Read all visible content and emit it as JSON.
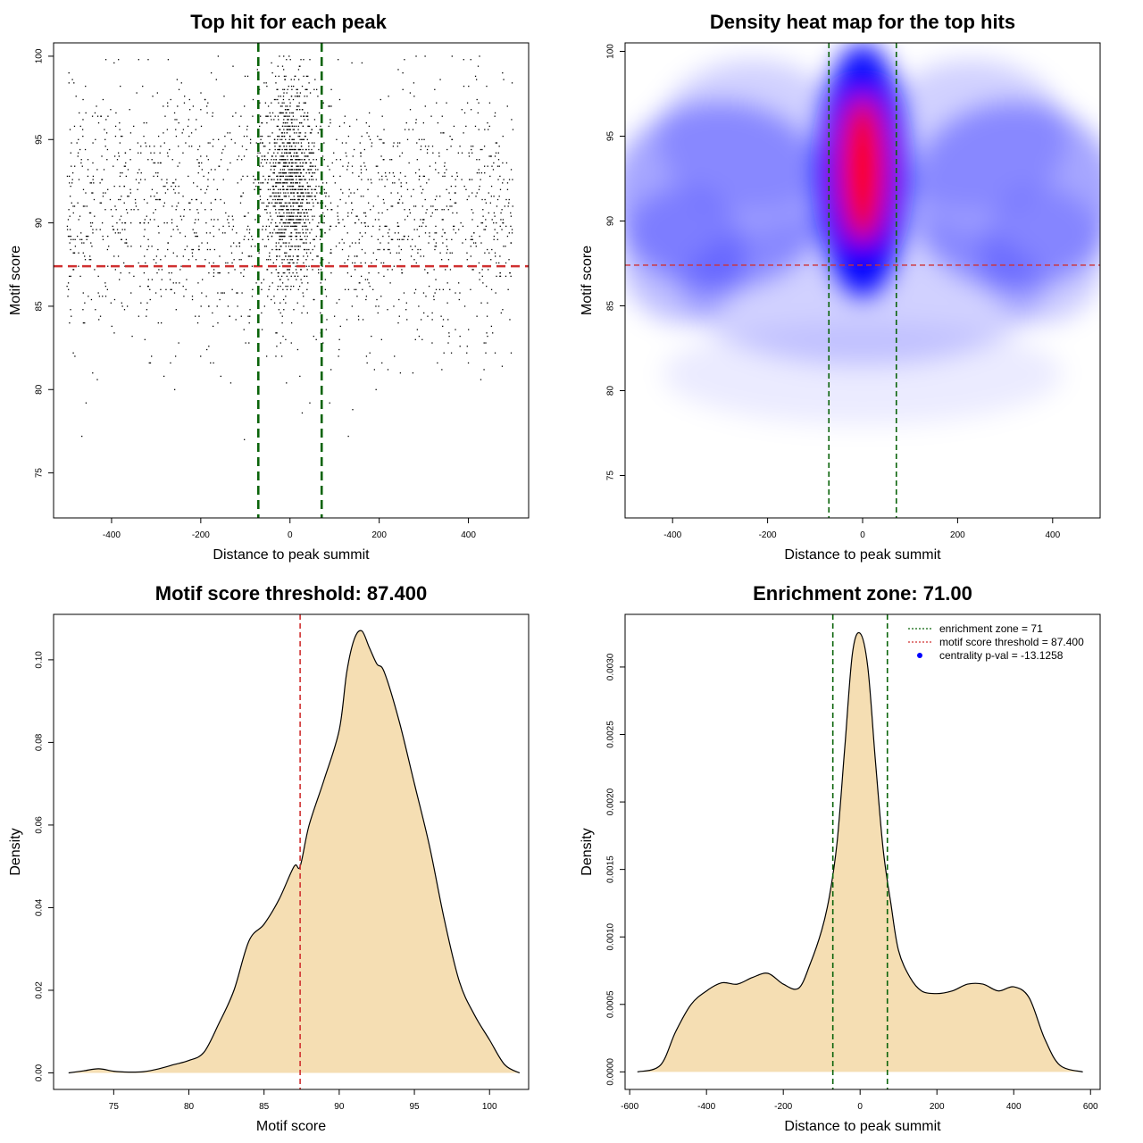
{
  "colors": {
    "threshold_red": "#d03030",
    "zone_green": "#0a640a",
    "density_fill": "#f5deb3",
    "heat_low": "#ffffff",
    "heat_mid": "#0000ff",
    "heat_high": "#ff0000",
    "point_color": "#000000"
  },
  "chart_data": [
    {
      "id": "scatter",
      "type": "scatter",
      "title": "Top hit for each peak",
      "xlabel": "Distance to peak summit",
      "ylabel": "Motif score",
      "xlim": [
        -530,
        535
      ],
      "ylim": [
        72.3,
        100.8
      ],
      "xticks": [
        -400,
        -200,
        0,
        200,
        400
      ],
      "yticks": [
        75,
        80,
        85,
        90,
        95,
        100
      ],
      "xtick_labels": [
        "-400",
        "-200",
        "0",
        "200",
        "400"
      ],
      "ytick_labels": [
        "75",
        "80",
        "85",
        "90",
        "95",
        "100"
      ],
      "threshold_y": 87.4,
      "zone_x": [
        -71,
        71
      ],
      "points_note": "approx. 3000 points; dense central band between -71 and 71, background spread between -500 and 500",
      "points_sampled": {
        "n_center": 1100,
        "n_background": 1800,
        "center_sd_x": 28,
        "center_mean_y": 92.5,
        "center_sd_y": 3.0,
        "bg_mean_y": 90.5,
        "bg_sd_y": 4.0
      },
      "grid": false
    },
    {
      "id": "heatmap",
      "type": "heatmap",
      "title": "Density heat map for the top hits",
      "xlabel": "Distance to peak summit",
      "ylabel": "Motif score",
      "xlim": [
        -500,
        500
      ],
      "ylim": [
        72.5,
        100.5
      ],
      "xticks": [
        -400,
        -200,
        0,
        200,
        400
      ],
      "yticks": [
        75,
        80,
        85,
        90,
        95,
        100
      ],
      "xtick_labels": [
        "-400",
        "-200",
        "0",
        "200",
        "400"
      ],
      "ytick_labels": [
        "75",
        "80",
        "85",
        "90",
        "95",
        "100"
      ],
      "threshold_y": 87.4,
      "zone_x": [
        -71,
        71
      ],
      "density_peak": {
        "x": 0,
        "y": 93
      },
      "grid": false
    },
    {
      "id": "score_density",
      "type": "area",
      "title": "Motif score threshold: 87.400",
      "xlabel": "Motif score",
      "ylabel": "Density",
      "xlim": [
        71,
        102.6
      ],
      "ylim": [
        -0.004,
        0.111
      ],
      "xticks": [
        75,
        80,
        85,
        90,
        95,
        100
      ],
      "yticks": [
        0.0,
        0.02,
        0.04,
        0.06,
        0.08,
        0.1
      ],
      "xtick_labels": [
        "75",
        "80",
        "85",
        "90",
        "95",
        "100"
      ],
      "ytick_labels": [
        "0.00",
        "0.02",
        "0.04",
        "0.06",
        "0.08",
        "0.10"
      ],
      "threshold_x": 87.4,
      "x": [
        72,
        73,
        74,
        75,
        76,
        77,
        78,
        79,
        80,
        81,
        82,
        83,
        84,
        85,
        86,
        87,
        87.4,
        88,
        89,
        90,
        90.5,
        91,
        91.5,
        92,
        92.5,
        93,
        94,
        95,
        96,
        97,
        98,
        99,
        100,
        101,
        102
      ],
      "y": [
        0.0,
        0.0005,
        0.001,
        0.0004,
        0.0002,
        0.0003,
        0.001,
        0.002,
        0.003,
        0.005,
        0.012,
        0.02,
        0.032,
        0.036,
        0.042,
        0.05,
        0.05,
        0.06,
        0.071,
        0.083,
        0.097,
        0.105,
        0.107,
        0.103,
        0.099,
        0.097,
        0.085,
        0.07,
        0.055,
        0.037,
        0.022,
        0.014,
        0.008,
        0.002,
        0.0
      ],
      "grid": false
    },
    {
      "id": "distance_density",
      "type": "area",
      "title": "Enrichment zone: 71.00",
      "xlabel": "Distance to peak summit",
      "ylabel": "Density",
      "xlim": [
        -612,
        625
      ],
      "ylim": [
        -0.00013,
        0.00339
      ],
      "xticks": [
        -600,
        -400,
        -200,
        0,
        200,
        400,
        600
      ],
      "yticks": [
        0.0,
        0.0005,
        0.001,
        0.0015,
        0.002,
        0.0025,
        0.003
      ],
      "xtick_labels": [
        "-600",
        "-400",
        "-200",
        "0",
        "200",
        "400",
        "600"
      ],
      "ytick_labels": [
        "0.0000",
        "0.0005",
        "0.0010",
        "0.0015",
        "0.0020",
        "0.0025",
        "0.0030"
      ],
      "zone_x": [
        -71,
        71
      ],
      "x": [
        -580,
        -520,
        -480,
        -440,
        -400,
        -360,
        -320,
        -280,
        -240,
        -200,
        -160,
        -130,
        -100,
        -80,
        -60,
        -40,
        -20,
        0,
        20,
        40,
        60,
        80,
        100,
        130,
        160,
        200,
        240,
        280,
        320,
        360,
        400,
        440,
        480,
        520,
        580
      ],
      "y": [
        0.0,
        5e-05,
        0.0003,
        0.0005,
        0.0006,
        0.00066,
        0.00065,
        0.0007,
        0.00073,
        0.00065,
        0.00062,
        0.0008,
        0.00105,
        0.0013,
        0.0017,
        0.0024,
        0.0031,
        0.00325,
        0.003,
        0.0023,
        0.00165,
        0.00125,
        0.0009,
        0.0007,
        0.0006,
        0.00058,
        0.0006,
        0.00065,
        0.00065,
        0.0006,
        0.00063,
        0.00055,
        0.00025,
        5e-05,
        0.0
      ],
      "legend": {
        "placement": "top-right",
        "entries": [
          {
            "label": "enrichment zone = 71",
            "style": "dotted-line",
            "color": "#0a640a"
          },
          {
            "label": "motif score threshold = 87.400",
            "style": "dotted-line",
            "color": "#d03030"
          },
          {
            "label": "centrality p-val = -13.1258",
            "style": "point",
            "color": "#0000ff"
          }
        ]
      },
      "grid": false
    }
  ]
}
